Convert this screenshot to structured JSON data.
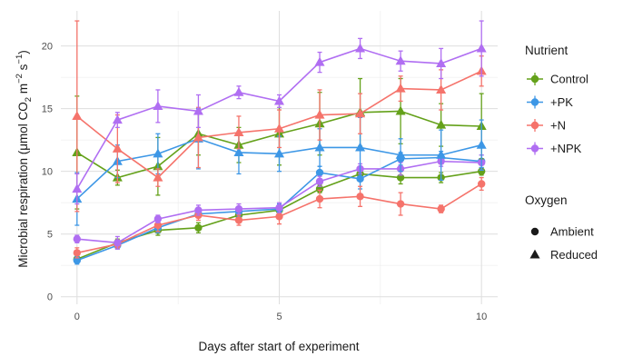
{
  "chart_data": {
    "type": "line",
    "xlabel": "Days after start of experiment",
    "ylabel_pre": "Microbial respiration (μmol CO",
    "ylabel_sub": "2",
    "ylabel_mid": " m",
    "ylabel_sup1": "−2",
    "ylabel_mid2": " s",
    "ylabel_sup2": "−1",
    "ylabel_post": ")",
    "xlim": [
      -0.4,
      10.4
    ],
    "ylim": [
      -0.6,
      22.8
    ],
    "x_ticks": [
      0,
      5,
      10
    ],
    "y_ticks": [
      0,
      5,
      10,
      15,
      20
    ],
    "grid": true,
    "legend_position": "right",
    "legend_nutrient_title": "Nutrient",
    "legend_oxygen_title": "Oxygen",
    "oxygen_levels": [
      {
        "name": "Ambient",
        "shape": "circle"
      },
      {
        "name": "Reduced",
        "shape": "triangle"
      }
    ],
    "series": [
      {
        "name": "Control",
        "color": "#64a11a",
        "ambient": {
          "y": [
            3.0,
            4.3,
            5.3,
            5.5,
            6.5,
            6.9,
            8.6,
            9.8,
            9.5,
            9.5,
            10.0
          ],
          "err": [
            0.3,
            0.3,
            0.4,
            0.4,
            0.4,
            0.3,
            0.3,
            0.5,
            0.5,
            0.4,
            0.3
          ]
        },
        "reduced": {
          "y": [
            11.5,
            9.5,
            10.4,
            13.0,
            12.1,
            13.0,
            13.8,
            14.7,
            14.8,
            13.7,
            13.6
          ],
          "err": [
            4.5,
            0.6,
            2.3,
            1.7,
            1.4,
            2.5,
            2.5,
            2.7,
            2.6,
            1.7,
            2.6
          ]
        }
      },
      {
        "name": "+PK",
        "color": "#3d97e6",
        "ambient": {
          "y": [
            2.9,
            4.1,
            5.5,
            6.6,
            6.8,
            7.0,
            9.9,
            9.4,
            11.0,
            11.1,
            10.8
          ],
          "err": [
            0.3,
            0.3,
            0.4,
            0.3,
            0.4,
            0.4,
            0.5,
            0.8,
            0.5,
            0.5,
            0.5
          ]
        },
        "reduced": {
          "y": [
            7.8,
            10.8,
            11.4,
            12.6,
            11.5,
            11.4,
            11.9,
            11.9,
            11.3,
            11.3,
            12.1
          ],
          "err": [
            2.1,
            1.3,
            1.6,
            2.4,
            1.7,
            1.4,
            1.5,
            2.4,
            1.3,
            2.0,
            2.0
          ]
        }
      },
      {
        "name": "+N",
        "color": "#f5736b",
        "ambient": {
          "y": [
            3.5,
            4.2,
            5.7,
            6.5,
            6.1,
            6.4,
            7.8,
            8.0,
            7.4,
            7.0,
            9.0
          ],
          "err": [
            0.4,
            0.3,
            0.5,
            0.4,
            0.4,
            0.6,
            0.7,
            0.8,
            0.9,
            0.3,
            0.5
          ]
        },
        "reduced": {
          "y": [
            14.4,
            11.8,
            9.5,
            12.7,
            13.1,
            13.4,
            14.5,
            14.6,
            16.6,
            16.5,
            18.0
          ],
          "err": [
            7.6,
            2.7,
            0.7,
            2.4,
            1.3,
            1.5,
            2.0,
            1.6,
            1.0,
            1.6,
            1.2
          ]
        }
      },
      {
        "name": "+NPK",
        "color": "#b06ef2",
        "ambient": {
          "y": [
            4.6,
            4.3,
            6.2,
            6.9,
            7.0,
            7.1,
            9.2,
            10.2,
            10.2,
            10.8,
            10.7
          ],
          "err": [
            0.3,
            0.5,
            0.3,
            0.4,
            0.4,
            0.4,
            0.4,
            0.4,
            0.5,
            0.4,
            0.6
          ]
        },
        "reduced": {
          "y": [
            8.6,
            14.1,
            15.2,
            14.8,
            16.3,
            15.6,
            18.7,
            19.8,
            18.8,
            18.6,
            19.8
          ],
          "err": [
            1.2,
            0.6,
            1.3,
            1.3,
            0.5,
            0.5,
            0.8,
            0.8,
            0.8,
            1.2,
            2.2
          ]
        }
      }
    ]
  }
}
